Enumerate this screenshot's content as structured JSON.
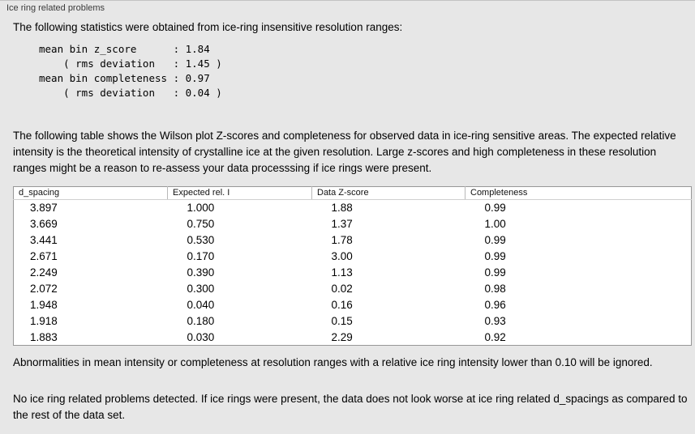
{
  "panel_title": "Ice ring related problems",
  "intro": "The following statistics were obtained from ice-ring insensitive resolution ranges:",
  "stats_block": "mean bin z_score      : 1.84\n    ( rms deviation   : 1.45 )\nmean bin completeness : 0.97\n    ( rms deviation   : 0.04 )",
  "description": "The following table shows the Wilson plot Z-scores and completeness for observed data in ice-ring sensitive areas. The expected relative intensity is the theoretical intensity of crystalline ice at the given resolution. Large z-scores and high completeness in these resolution ranges might be a reason to re-assess your data processsing if ice rings were present.",
  "table": {
    "headers": [
      "d_spacing",
      "Expected rel. I",
      "Data Z-score",
      "Completeness"
    ],
    "rows": [
      [
        "3.897",
        "1.000",
        "1.88",
        "0.99"
      ],
      [
        "3.669",
        "0.750",
        "1.37",
        "1.00"
      ],
      [
        "3.441",
        "0.530",
        "1.78",
        "0.99"
      ],
      [
        "2.671",
        "0.170",
        "3.00",
        "0.99"
      ],
      [
        "2.249",
        "0.390",
        "1.13",
        "0.99"
      ],
      [
        "2.072",
        "0.300",
        "0.02",
        "0.98"
      ],
      [
        "1.948",
        "0.040",
        "0.16",
        "0.96"
      ],
      [
        "1.918",
        "0.180",
        "0.15",
        "0.93"
      ],
      [
        "1.883",
        "0.030",
        "2.29",
        "0.92"
      ]
    ]
  },
  "note_ignore": "Abnormalities in mean intensity or completeness at resolution ranges with a relative ice ring intensity lower than 0.10 will be ignored.",
  "conclusion": "No ice ring related problems detected. If ice rings were present, the data does not look worse at ice ring related d_spacings as compared to the rest of the data set."
}
